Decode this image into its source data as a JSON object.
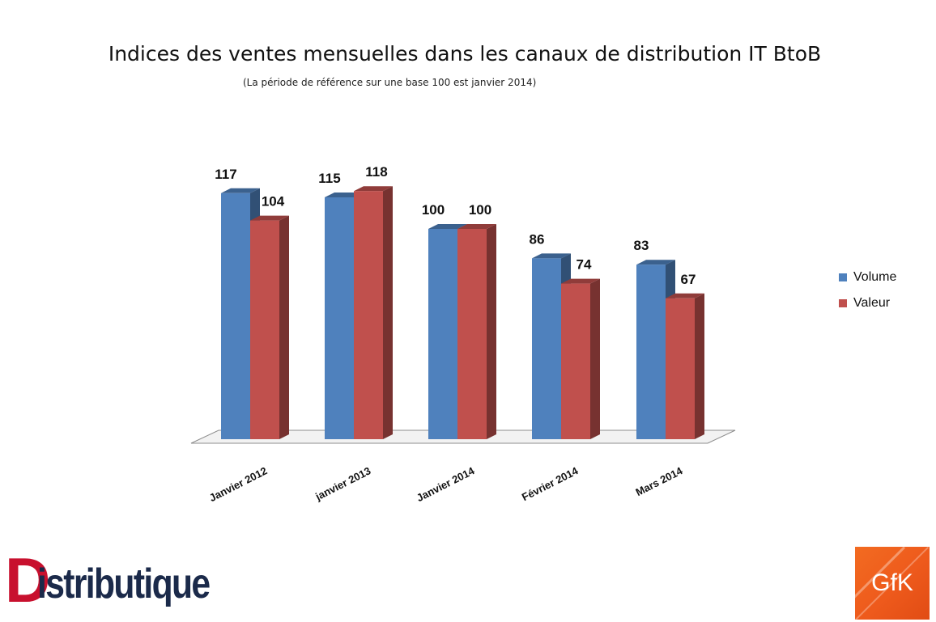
{
  "chart_data": {
    "type": "bar",
    "title": "Indices des ventes mensuelles dans les canaux de distribution IT BtoB",
    "subtitle": "(La période de référence sur une base 100 est janvier 2014)",
    "categories": [
      "Janvier 2012",
      "janvier 2013",
      "Janvier 2014",
      "Février 2014",
      "Mars 2014"
    ],
    "series": [
      {
        "name": "Volume",
        "values": [
          117,
          115,
          100,
          86,
          83
        ],
        "color": "#4f81bd"
      },
      {
        "name": "Valeur",
        "values": [
          104,
          118,
          100,
          74,
          67
        ],
        "color": "#c0504d"
      }
    ],
    "ylim": [
      0,
      120
    ],
    "legend_position": "right",
    "grid": false
  },
  "logos": {
    "distributique": "Distributique",
    "gfk": "GfK"
  }
}
